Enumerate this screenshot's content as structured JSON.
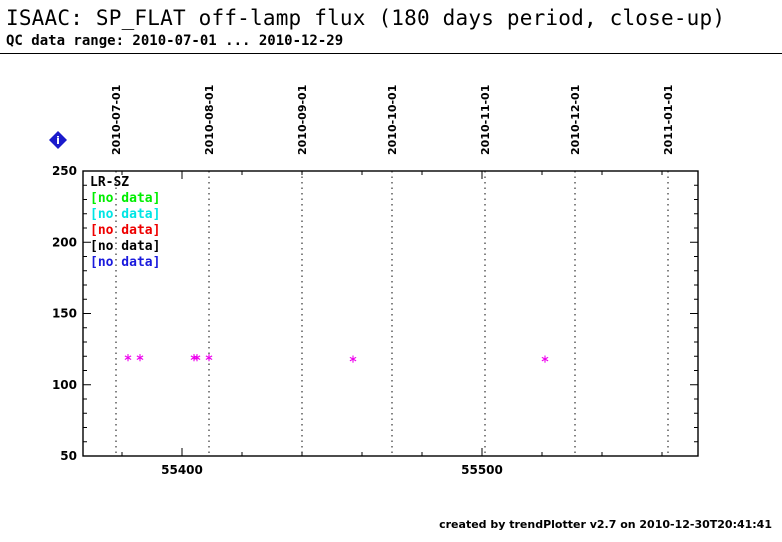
{
  "header": {
    "title": "ISAAC: SP_FLAT off-lamp flux (180 days period, close-up)",
    "subtitle": "QC data range: 2010-07-01 ... 2010-12-29"
  },
  "footer": {
    "text": "created by trendPlotter v2.7 on 2010-12-30T20:41:41"
  },
  "chart_data": {
    "type": "scatter",
    "xlim": [
      55367,
      55572
    ],
    "ylim": [
      50,
      250
    ],
    "x_ticks": [
      55400,
      55500
    ],
    "y_ticks": [
      50,
      100,
      150,
      200,
      250
    ],
    "date_lines": [
      {
        "label": "2010-07-01",
        "mjd": 55378
      },
      {
        "label": "2010-08-01",
        "mjd": 55409
      },
      {
        "label": "2010-09-01",
        "mjd": 55440
      },
      {
        "label": "2010-10-01",
        "mjd": 55470
      },
      {
        "label": "2010-11-01",
        "mjd": 55501
      },
      {
        "label": "2010-12-01",
        "mjd": 55531
      },
      {
        "label": "2011-01-01",
        "mjd": 55562
      }
    ],
    "info_marker": {
      "symbol": "i",
      "color": "#1a1acc"
    },
    "legend": {
      "position": "top-left",
      "entries": [
        {
          "text": "LR-SZ",
          "color": "#000000"
        },
        {
          "text": "[no data]",
          "color": "#00ee00"
        },
        {
          "text": "[no data]",
          "color": "#00e5e5"
        },
        {
          "text": "[no data]",
          "color": "#ee0000"
        },
        {
          "text": "[no data]",
          "color": "#000000"
        },
        {
          "text": "[no data]",
          "color": "#1a1add"
        }
      ]
    },
    "series": [
      {
        "name": "LR-SZ",
        "color": "#ee00ee",
        "marker": "asterisk",
        "points": [
          {
            "x": 55382,
            "y": 119
          },
          {
            "x": 55386,
            "y": 119
          },
          {
            "x": 55404,
            "y": 119
          },
          {
            "x": 55405,
            "y": 119
          },
          {
            "x": 55409,
            "y": 119
          },
          {
            "x": 55457,
            "y": 118
          },
          {
            "x": 55521,
            "y": 118
          }
        ]
      }
    ]
  }
}
